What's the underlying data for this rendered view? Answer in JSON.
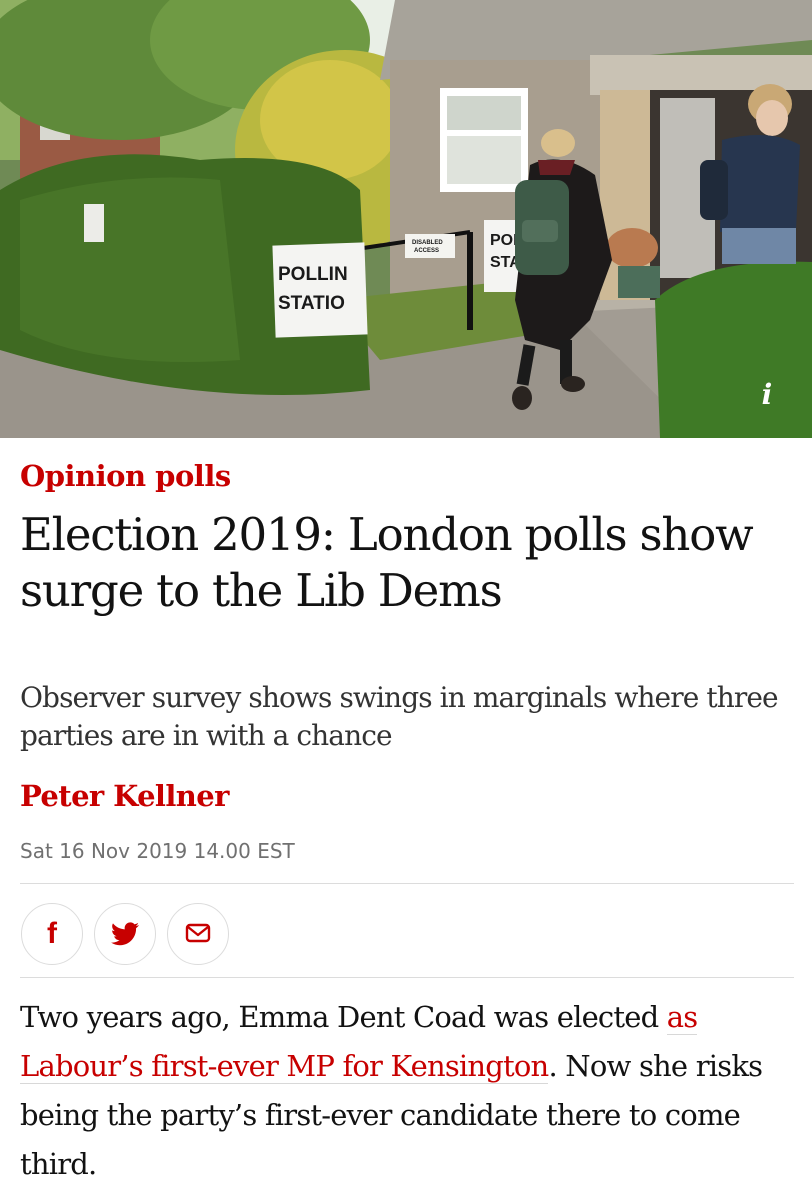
{
  "hero": {
    "sign_left_line1": "POLLIN",
    "sign_left_line2": "STATIO",
    "sign_right_line1": "POL",
    "sign_right_line2": "STA",
    "disabled_sign_line1": "DISABLED",
    "disabled_sign_line2": "ACCESS",
    "info_label": "i"
  },
  "article": {
    "section": "Opinion polls",
    "headline": "Election 2019: London polls show surge to the Lib Dems",
    "standfirst": "Observer survey shows swings in marginals where three parties are in with a chance",
    "byline": "Peter Kellner",
    "dateline": "Sat 16 Nov 2019 14.00 EST",
    "body_before": "Two years ago, Emma Dent Coad was elected ",
    "body_link": "as Labour’s first-ever MP for Kensington",
    "body_after": ". Now she risks being the party’s first-ever candidate there to come third."
  },
  "share": {
    "facebook_icon": "f",
    "twitter_icon": "twitter-bird-icon",
    "email_icon": "envelope-icon"
  },
  "colors": {
    "accent": "#c70000",
    "text": "#121212",
    "muted": "#707070",
    "rule": "#dcdcdc"
  }
}
